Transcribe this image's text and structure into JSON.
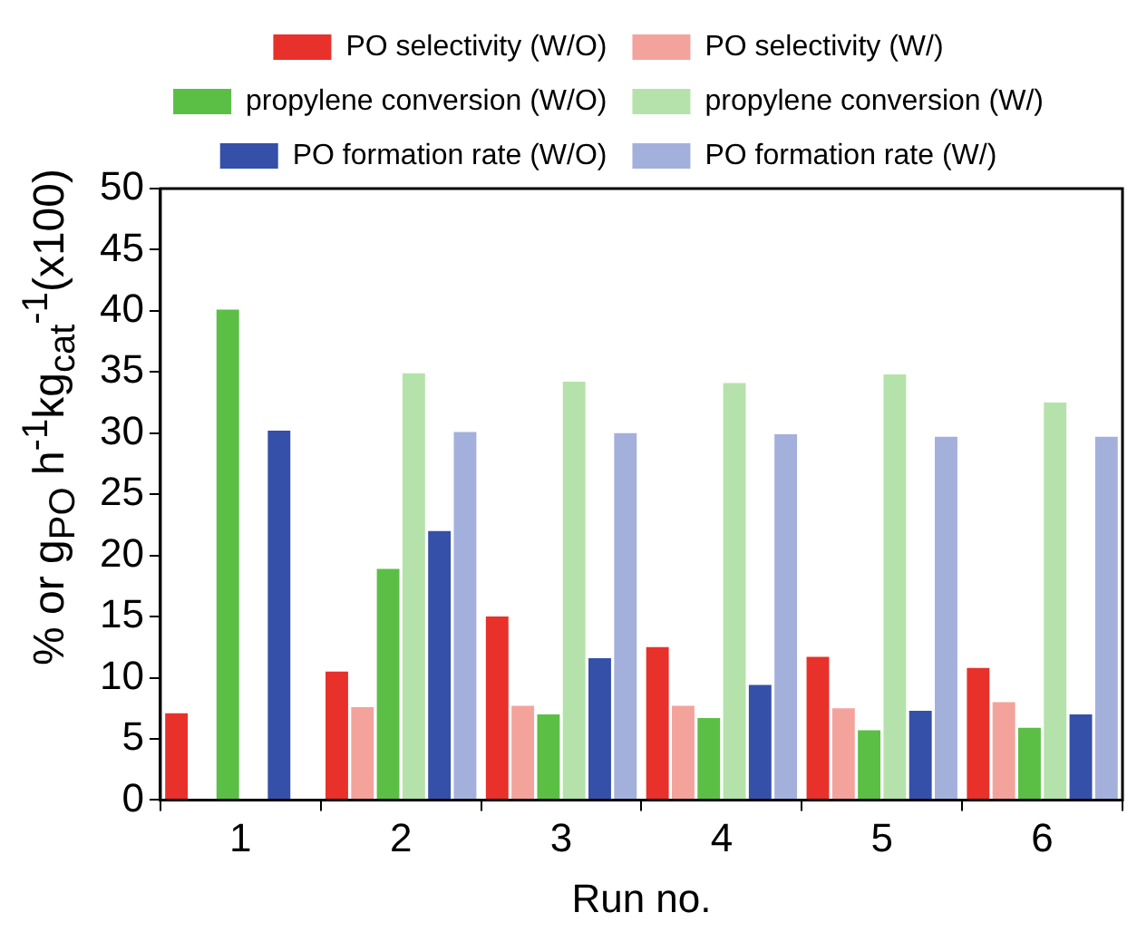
{
  "chart_data": {
    "type": "bar",
    "xlabel": "Run no.",
    "ylabel": "% or g$_{PO}$ h$^{-1}$kg$_{cat}$$^{-1}$(x100)",
    "categories": [
      "1",
      "2",
      "3",
      "4",
      "5",
      "6"
    ],
    "series": [
      {
        "name": "PO selectivity (W/O)",
        "color": "#e8312a",
        "values": [
          7.1,
          10.5,
          15.0,
          12.5,
          11.7,
          10.8
        ]
      },
      {
        "name": "PO selectivity (W/)",
        "color": "#f4a29c",
        "values": [
          null,
          7.6,
          7.7,
          7.7,
          7.5,
          8.0
        ]
      },
      {
        "name": "propylene conversion (W/O)",
        "color": "#5bbf45",
        "values": [
          40.1,
          18.9,
          7.0,
          6.7,
          5.7,
          5.9
        ]
      },
      {
        "name": "propylene conversion (W/)",
        "color": "#b5e2aa",
        "values": [
          null,
          34.9,
          34.2,
          34.1,
          34.8,
          32.5
        ]
      },
      {
        "name": "PO formation rate (W/O)",
        "color": "#3450a8",
        "values": [
          30.2,
          22.0,
          11.6,
          9.4,
          7.3,
          7.0
        ]
      },
      {
        "name": "PO formation rate (W/)",
        "color": "#a3b0dc",
        "values": [
          null,
          30.1,
          30.0,
          29.9,
          29.7,
          29.7
        ]
      }
    ],
    "ylim": [
      0,
      50
    ],
    "yticks": [
      0,
      5,
      10,
      15,
      20,
      25,
      30,
      35,
      40,
      45,
      50
    ],
    "grid": false,
    "legend": "top"
  }
}
